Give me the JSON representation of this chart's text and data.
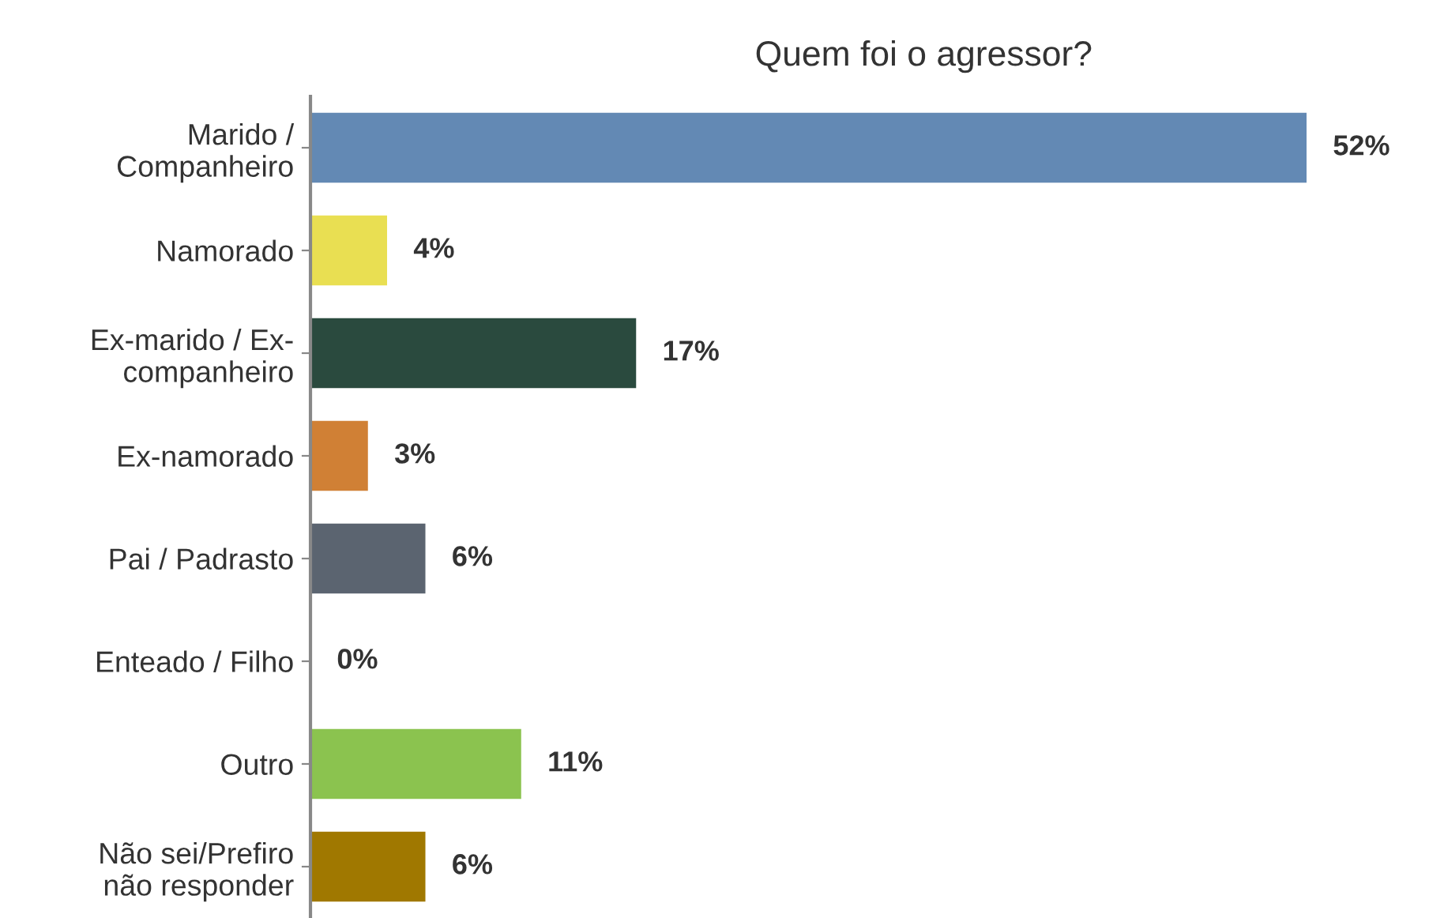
{
  "chart_data": {
    "type": "bar",
    "orientation": "horizontal",
    "title": "Quem foi o agressor?",
    "categories": [
      "Marido /\nCompanheiro",
      "Namorado",
      "Ex-marido / Ex-\ncompanheiro",
      "Ex-namorado",
      "Pai / Padrasto",
      "Enteado / Filho",
      "Outro",
      "Não sei/Prefiro\nnão responder"
    ],
    "values": [
      52,
      4,
      17,
      3,
      6,
      0,
      11,
      6
    ],
    "colors": [
      "#6389b4",
      "#e9df52",
      "#2a4a3e",
      "#d08035",
      "#5b6470",
      "#9a9a9a",
      "#8bc34f",
      "#a07800"
    ],
    "value_labels": [
      "52%",
      "4%",
      "17%",
      "3%",
      "6%",
      "0%",
      "11%",
      "6%"
    ],
    "tick_labels": "y",
    "grid": false,
    "legend": false
  }
}
